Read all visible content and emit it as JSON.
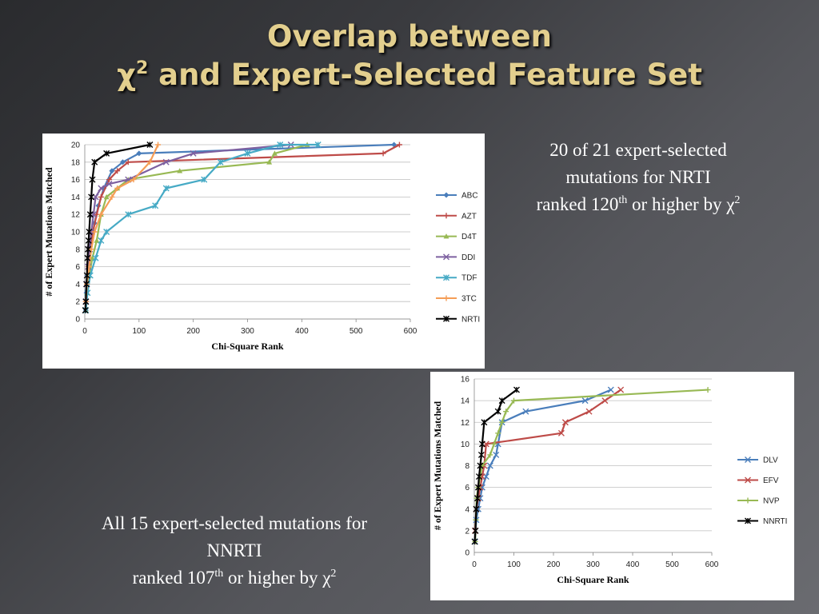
{
  "slide": {
    "title_line1": "Overlap between",
    "title_line2_prefix": "χ",
    "title_line2_sup": "2",
    "title_line2_suffix": " and Expert-Selected Feature Set",
    "caption_nrti": {
      "line1": "20 of 21 expert-selected",
      "line2": "mutations for NRTI",
      "line3_prefix": "ranked 120",
      "line3_sup": "th",
      "line3_mid": " or higher by χ",
      "line3_sup2": "2"
    },
    "caption_nnrti": {
      "line1": "All 15 expert-selected mutations for",
      "line2": "NNRTI",
      "line3_prefix": "ranked 107",
      "line3_sup": "th",
      "line3_mid": " or higher by χ",
      "line3_sup2": "2"
    }
  },
  "chart_data": [
    {
      "type": "line",
      "xlabel": "Chi-Square Rank",
      "ylabel": "# of Expert Mutations Matched",
      "xlim": [
        0,
        600
      ],
      "ylim": [
        0,
        20
      ],
      "xticks": [
        0,
        100,
        200,
        300,
        400,
        500,
        600
      ],
      "yticks": [
        0,
        2,
        4,
        6,
        8,
        10,
        12,
        14,
        16,
        18,
        20
      ],
      "grid": true,
      "legend": "right",
      "series": [
        {
          "name": "ABC",
          "color": "#4a7ebb",
          "marker": "diamond",
          "x": [
            2,
            3,
            5,
            8,
            12,
            18,
            25,
            35,
            50,
            70,
            100,
            570
          ],
          "y": [
            1,
            3,
            5,
            7,
            9,
            11,
            13,
            15,
            17,
            18,
            19,
            20
          ]
        },
        {
          "name": "AZT",
          "color": "#be4b48",
          "marker": "plus",
          "x": [
            2,
            4,
            7,
            10,
            15,
            22,
            30,
            45,
            60,
            80,
            550,
            580
          ],
          "y": [
            2,
            4,
            6,
            8,
            10,
            12,
            14,
            16,
            17,
            18,
            19,
            20
          ]
        },
        {
          "name": "D4T",
          "color": "#98b954",
          "marker": "triangle",
          "x": [
            2,
            4,
            8,
            14,
            22,
            30,
            40,
            60,
            80,
            175,
            340,
            350,
            410
          ],
          "y": [
            1,
            3,
            5,
            7,
            9,
            12,
            14,
            15,
            16,
            17,
            18,
            19,
            20
          ]
        },
        {
          "name": "DDI",
          "color": "#7d60a0",
          "marker": "x",
          "x": [
            2,
            4,
            6,
            9,
            12,
            16,
            20,
            30,
            45,
            80,
            150,
            200,
            380
          ],
          "y": [
            2,
            4,
            6,
            8,
            10,
            12,
            14,
            15,
            15.5,
            16,
            18,
            19,
            20
          ]
        },
        {
          "name": "TDF",
          "color": "#46aac5",
          "marker": "star",
          "x": [
            2,
            5,
            10,
            20,
            30,
            40,
            80,
            130,
            150,
            220,
            250,
            300,
            360,
            430
          ],
          "y": [
            1,
            3,
            5,
            7,
            9,
            10,
            12,
            13,
            15,
            16,
            18,
            19,
            20,
            20
          ]
        },
        {
          "name": "3TC",
          "color": "#f59d56",
          "marker": "plus",
          "x": [
            2,
            4,
            8,
            12,
            18,
            30,
            50,
            60,
            90,
            120,
            135
          ],
          "y": [
            2,
            4,
            6,
            8,
            10,
            12,
            14,
            15,
            16,
            18,
            20
          ]
        },
        {
          "name": "NRTI",
          "color": "#000000",
          "marker": "star",
          "x": [
            1,
            2,
            3,
            4,
            5,
            6,
            7,
            8,
            10,
            12,
            14,
            18,
            40,
            120
          ],
          "y": [
            1,
            2,
            4,
            5,
            7,
            8,
            9,
            10,
            12,
            14,
            16,
            18,
            19,
            20
          ]
        }
      ]
    },
    {
      "type": "line",
      "xlabel": "Chi-Square Rank",
      "ylabel": "# of Expert Mutations Matched",
      "xlim": [
        0,
        600
      ],
      "ylim": [
        0,
        16
      ],
      "xticks": [
        0,
        100,
        200,
        300,
        400,
        500,
        600
      ],
      "yticks": [
        0,
        2,
        4,
        6,
        8,
        10,
        12,
        14,
        16
      ],
      "grid": true,
      "legend": "right",
      "series": [
        {
          "name": "DLV",
          "color": "#4a7ebb",
          "marker": "x",
          "x": [
            2,
            5,
            10,
            15,
            20,
            30,
            40,
            55,
            60,
            70,
            130,
            280,
            345
          ],
          "y": [
            1,
            3,
            4,
            5,
            6,
            7,
            8,
            9,
            10,
            12,
            13,
            14,
            15
          ]
        },
        {
          "name": "EFV",
          "color": "#be4b48",
          "marker": "x",
          "x": [
            2,
            5,
            10,
            15,
            20,
            25,
            30,
            220,
            230,
            290,
            330,
            370
          ],
          "y": [
            2,
            4,
            5,
            6,
            7,
            8,
            10,
            11,
            12,
            13,
            14,
            15
          ]
        },
        {
          "name": "NVP",
          "color": "#98b954",
          "marker": "plus",
          "x": [
            2,
            4,
            6,
            10,
            20,
            40,
            50,
            60,
            70,
            80,
            100,
            590
          ],
          "y": [
            1,
            3,
            5,
            6,
            8,
            9,
            10,
            11,
            12,
            13,
            14,
            15
          ]
        },
        {
          "name": "NNRTI",
          "color": "#000000",
          "marker": "star",
          "x": [
            1,
            3,
            5,
            8,
            10,
            12,
            15,
            18,
            20,
            25,
            60,
            70,
            107
          ],
          "y": [
            1,
            2,
            4,
            5,
            6,
            7,
            8,
            9,
            10,
            12,
            13,
            14,
            15
          ]
        }
      ]
    }
  ]
}
